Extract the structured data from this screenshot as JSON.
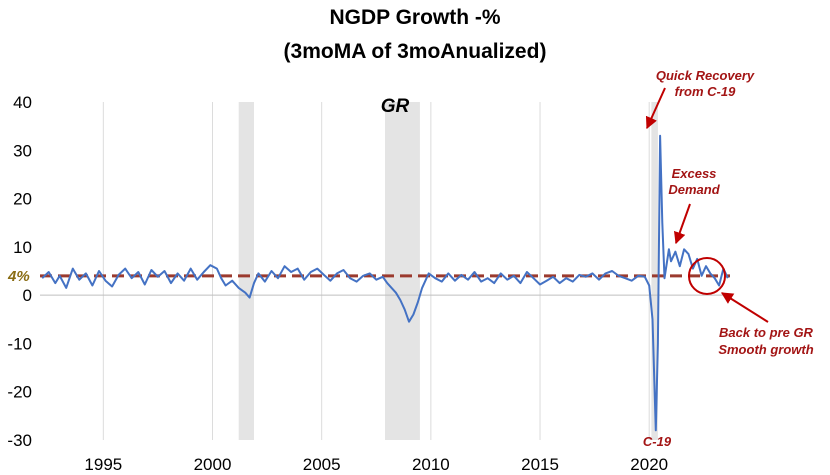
{
  "chart_data": {
    "type": "line",
    "title": "NGDP Growth -%",
    "subtitle": "(3moMA of 3moAnualized)",
    "xlabel": "",
    "ylabel": "",
    "xlim": [
      1992.1,
      2023.7
    ],
    "ylim": [
      -30,
      40
    ],
    "yticks": [
      "40",
      "30",
      "20",
      "10",
      "0",
      "-10",
      "-20",
      "-30"
    ],
    "ytick_values": [
      40,
      30,
      20,
      10,
      0,
      -10,
      -20,
      -30
    ],
    "xticks": [
      "1995",
      "2000",
      "2005",
      "2010",
      "2015",
      "2020"
    ],
    "xtick_values": [
      1995,
      2000,
      2005,
      2010,
      2015,
      2020
    ],
    "grid": "vertical",
    "recessions": [
      {
        "start": 2001.2,
        "end": 2001.9
      },
      {
        "start": 2007.9,
        "end": 2009.5
      },
      {
        "start": 2020.1,
        "end": 2020.4
      }
    ],
    "reference_line": {
      "value": 4,
      "label": "4%",
      "color": "#9b3a2e"
    },
    "series": [
      {
        "name": "",
        "color": "#4472c4",
        "x": [
          1992.2,
          1992.5,
          1992.8,
          1993.0,
          1993.3,
          1993.6,
          1993.9,
          1994.2,
          1994.5,
          1994.8,
          1995.1,
          1995.4,
          1995.7,
          1996.0,
          1996.3,
          1996.6,
          1996.9,
          1997.2,
          1997.5,
          1997.8,
          1998.1,
          1998.4,
          1998.7,
          1999.0,
          1999.3,
          1999.6,
          1999.9,
          2000.2,
          2000.4,
          2000.6,
          2000.9,
          2001.2,
          2001.5,
          2001.7,
          2001.9,
          2002.1,
          2002.4,
          2002.7,
          2003.0,
          2003.3,
          2003.6,
          2003.9,
          2004.2,
          2004.5,
          2004.8,
          2005.1,
          2005.4,
          2005.7,
          2006.0,
          2006.3,
          2006.6,
          2006.9,
          2007.2,
          2007.5,
          2007.8,
          2008.0,
          2008.2,
          2008.4,
          2008.6,
          2008.8,
          2009.0,
          2009.2,
          2009.4,
          2009.6,
          2009.9,
          2010.2,
          2010.5,
          2010.8,
          2011.1,
          2011.4,
          2011.7,
          2012.0,
          2012.3,
          2012.6,
          2012.9,
          2013.2,
          2013.5,
          2013.8,
          2014.1,
          2014.4,
          2014.7,
          2015.0,
          2015.3,
          2015.6,
          2015.9,
          2016.2,
          2016.5,
          2016.8,
          2017.1,
          2017.4,
          2017.7,
          2018.0,
          2018.3,
          2018.6,
          2018.9,
          2019.2,
          2019.5,
          2019.8,
          2020.0,
          2020.15,
          2020.3,
          2020.4,
          2020.5,
          2020.6,
          2020.7,
          2020.8,
          2020.9,
          2021.0,
          2021.2,
          2021.4,
          2021.6,
          2021.8,
          2022.0,
          2022.2,
          2022.4,
          2022.6,
          2022.8,
          2023.0,
          2023.2,
          2023.4,
          2023.6
        ],
        "values": [
          3.5,
          4.8,
          2.5,
          4.0,
          1.5,
          5.5,
          3.2,
          4.5,
          2.0,
          5.0,
          3.0,
          1.8,
          4.2,
          5.5,
          3.5,
          4.8,
          2.2,
          5.2,
          3.8,
          5.0,
          2.5,
          4.5,
          3.0,
          5.5,
          3.2,
          4.8,
          6.2,
          5.5,
          3.5,
          2.0,
          3.0,
          1.5,
          0.5,
          -0.5,
          2.5,
          4.5,
          2.8,
          5.0,
          3.5,
          6.0,
          4.8,
          5.5,
          3.2,
          4.8,
          5.5,
          4.2,
          3.0,
          4.5,
          5.2,
          3.5,
          2.8,
          4.0,
          4.5,
          3.2,
          3.8,
          2.5,
          1.5,
          0.5,
          -1.0,
          -3.0,
          -5.5,
          -4.0,
          -1.5,
          1.5,
          4.5,
          3.5,
          2.8,
          4.5,
          3.0,
          4.2,
          3.2,
          4.8,
          2.8,
          3.5,
          2.5,
          4.5,
          3.2,
          4.0,
          2.5,
          4.8,
          3.5,
          2.2,
          3.0,
          3.8,
          2.5,
          3.5,
          2.8,
          4.2,
          3.8,
          4.5,
          3.2,
          4.5,
          5.0,
          4.0,
          3.5,
          3.0,
          4.0,
          3.8,
          2.0,
          -5.0,
          -28.0,
          -10.0,
          33.0,
          15.0,
          3.5,
          6.5,
          9.5,
          7.0,
          9.0,
          6.0,
          9.5,
          8.5,
          5.5,
          7.5,
          4.0,
          6.0,
          4.5,
          3.5,
          2.0,
          5.5,
          3.5
        ]
      }
    ],
    "annotations": [
      {
        "text": "Quick Recovery from C-19",
        "lines": [
          "Quick Recovery",
          "from C-19"
        ]
      },
      {
        "text": "Excess Demand",
        "lines": [
          "Excess",
          "Demand"
        ]
      },
      {
        "text": "Back to pre GR Smooth growth",
        "lines": [
          "Back to pre GR",
          "Smooth growth"
        ]
      },
      {
        "text": "C-19",
        "lines": [
          "C-19"
        ]
      },
      {
        "text": "GR",
        "lines": [
          "GR"
        ]
      }
    ]
  }
}
